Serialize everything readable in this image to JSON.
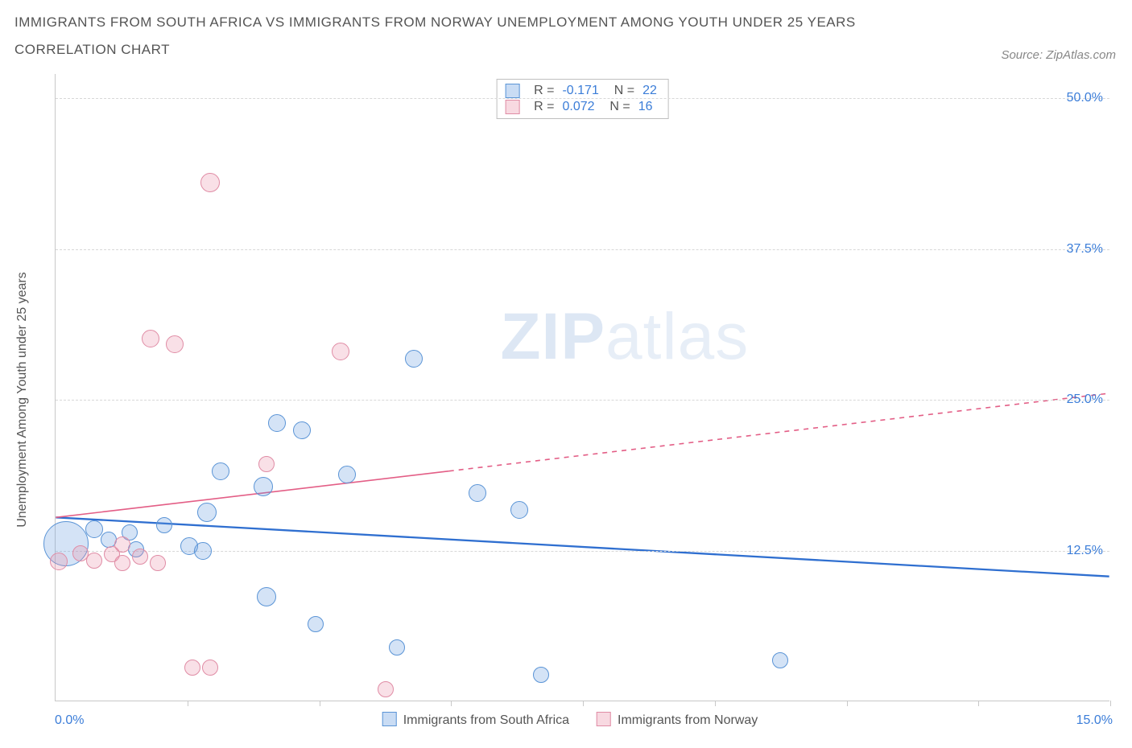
{
  "title": "IMMIGRANTS FROM SOUTH AFRICA VS IMMIGRANTS FROM NORWAY UNEMPLOYMENT AMONG YOUTH UNDER 25 YEARS",
  "subtitle": "CORRELATION CHART",
  "source": "Source: ZipAtlas.com",
  "ylabel": "Unemployment Among Youth under 25 years",
  "watermark_bold": "ZIP",
  "watermark_light": "atlas",
  "chart": {
    "type": "scatter",
    "xlim": [
      0,
      15
    ],
    "ylim": [
      0,
      52
    ],
    "x_min_label": "0.0%",
    "x_max_label": "15.0%",
    "x_ticks": [
      1.875,
      3.75,
      5.625,
      7.5,
      9.375,
      11.25,
      13.125,
      15.0
    ],
    "y_gridlines": [
      {
        "v": 12.5,
        "label": "12.5%"
      },
      {
        "v": 25.0,
        "label": "25.0%"
      },
      {
        "v": 37.5,
        "label": "37.5%"
      },
      {
        "v": 50.0,
        "label": "50.0%"
      }
    ],
    "background_color": "#ffffff",
    "grid_color": "#d8d8d8",
    "axis_color": "#c8c8c8",
    "text_color": "#555555",
    "tick_label_color": "#3b7dd8",
    "series": [
      {
        "name": "Immigrants from South Africa",
        "color_fill": "rgba(99,155,223,0.28)",
        "color_stroke": "#5a94d6",
        "stats": {
          "R": "-0.171",
          "N": "22"
        },
        "trend": {
          "x1": 0,
          "y1": 15.2,
          "x2": 15,
          "y2": 10.3,
          "dash_from_x": null,
          "stroke": "#2f6fd0",
          "width": 2.3
        },
        "points": [
          {
            "x": 0.15,
            "y": 13.1,
            "r": 28
          },
          {
            "x": 0.55,
            "y": 14.3,
            "r": 11
          },
          {
            "x": 0.75,
            "y": 13.4,
            "r": 10
          },
          {
            "x": 1.05,
            "y": 14.0,
            "r": 10
          },
          {
            "x": 1.15,
            "y": 12.6,
            "r": 10
          },
          {
            "x": 1.55,
            "y": 14.6,
            "r": 10
          },
          {
            "x": 1.9,
            "y": 12.9,
            "r": 11
          },
          {
            "x": 2.1,
            "y": 12.5,
            "r": 11
          },
          {
            "x": 2.15,
            "y": 15.7,
            "r": 12
          },
          {
            "x": 2.35,
            "y": 19.1,
            "r": 11
          },
          {
            "x": 2.95,
            "y": 17.8,
            "r": 12
          },
          {
            "x": 3.0,
            "y": 8.7,
            "r": 12
          },
          {
            "x": 3.15,
            "y": 23.1,
            "r": 11
          },
          {
            "x": 3.5,
            "y": 22.5,
            "r": 11
          },
          {
            "x": 3.7,
            "y": 6.4,
            "r": 10
          },
          {
            "x": 4.15,
            "y": 18.8,
            "r": 11
          },
          {
            "x": 4.85,
            "y": 4.5,
            "r": 10
          },
          {
            "x": 5.1,
            "y": 28.4,
            "r": 11
          },
          {
            "x": 6.0,
            "y": 17.3,
            "r": 11
          },
          {
            "x": 6.6,
            "y": 15.9,
            "r": 11
          },
          {
            "x": 6.9,
            "y": 2.2,
            "r": 10
          },
          {
            "x": 10.3,
            "y": 3.4,
            "r": 10
          }
        ]
      },
      {
        "name": "Immigrants from Norway",
        "color_fill": "rgba(235,145,170,0.28)",
        "color_stroke": "#e08ca5",
        "stats": {
          "R": "0.072",
          "N": "16"
        },
        "trend": {
          "x1": 0,
          "y1": 15.2,
          "x2": 15,
          "y2": 25.5,
          "dash_from_x": 5.6,
          "stroke": "#e35e86",
          "width": 1.6
        },
        "points": [
          {
            "x": 0.05,
            "y": 11.6,
            "r": 11
          },
          {
            "x": 0.35,
            "y": 12.3,
            "r": 10
          },
          {
            "x": 0.55,
            "y": 11.7,
            "r": 10
          },
          {
            "x": 0.8,
            "y": 12.2,
            "r": 10
          },
          {
            "x": 0.95,
            "y": 13.0,
            "r": 10
          },
          {
            "x": 0.95,
            "y": 11.5,
            "r": 10
          },
          {
            "x": 1.2,
            "y": 12.0,
            "r": 10
          },
          {
            "x": 1.45,
            "y": 11.5,
            "r": 10
          },
          {
            "x": 1.35,
            "y": 30.1,
            "r": 11
          },
          {
            "x": 1.7,
            "y": 29.6,
            "r": 11
          },
          {
            "x": 1.95,
            "y": 2.8,
            "r": 10
          },
          {
            "x": 2.2,
            "y": 2.8,
            "r": 10
          },
          {
            "x": 2.2,
            "y": 43.0,
            "r": 12
          },
          {
            "x": 3.0,
            "y": 19.7,
            "r": 10
          },
          {
            "x": 4.05,
            "y": 29.0,
            "r": 11
          },
          {
            "x": 4.7,
            "y": 1.0,
            "r": 10
          }
        ]
      }
    ],
    "bottom_legend": [
      {
        "swatch": "blue",
        "label": "Immigrants from South Africa"
      },
      {
        "swatch": "pink",
        "label": "Immigrants from Norway"
      }
    ]
  }
}
